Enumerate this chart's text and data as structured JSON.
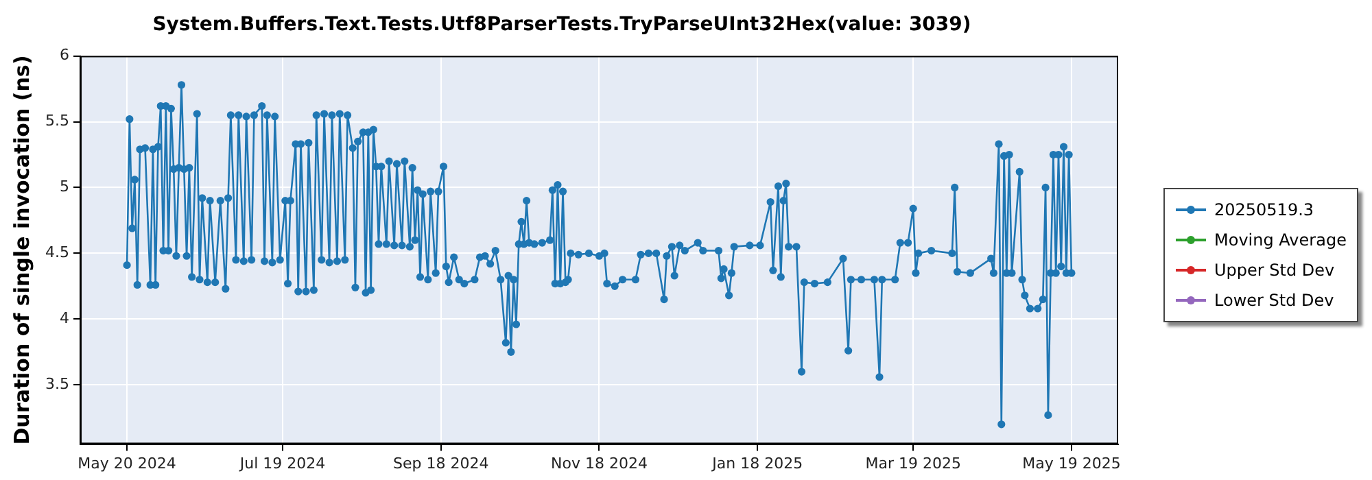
{
  "chart_data": {
    "type": "line",
    "title": "System.Buffers.Text.Tests.Utf8ParserTests.TryParseUInt32Hex(value: 3039)",
    "ylabel": "Duration of single invocation (ns)",
    "xlim": [
      "2024-05-02",
      "2025-06-06"
    ],
    "xticks": [
      {
        "value": "2024-05-20",
        "label": "May 20 2024"
      },
      {
        "value": "2024-07-19",
        "label": "Jul 19 2024"
      },
      {
        "value": "2024-09-18",
        "label": "Sep 18 2024"
      },
      {
        "value": "2024-11-18",
        "label": "Nov 18 2024"
      },
      {
        "value": "2025-01-18",
        "label": "Jan 18 2025"
      },
      {
        "value": "2025-03-19",
        "label": "Mar 19 2025"
      },
      {
        "value": "2025-05-19",
        "label": "May 19 2025"
      }
    ],
    "ylim": [
      3.05,
      6
    ],
    "yticks": [
      3.5,
      4,
      4.5,
      5,
      5.5,
      6
    ],
    "grid": true,
    "legend": "right",
    "marker": "circle",
    "line_style": "solid",
    "series": [
      {
        "name": "20250519.3",
        "color": "#1f77b4",
        "x": [
          "2024-05-20",
          "2024-05-21",
          "2024-05-22",
          "2024-05-23",
          "2024-05-24",
          "2024-05-25",
          "2024-05-27",
          "2024-05-29",
          "2024-05-30",
          "2024-05-31",
          "2024-06-01",
          "2024-06-02",
          "2024-06-03",
          "2024-06-04",
          "2024-06-05",
          "2024-06-06",
          "2024-06-07",
          "2024-06-08",
          "2024-06-09",
          "2024-06-10",
          "2024-06-11",
          "2024-06-12",
          "2024-06-13",
          "2024-06-14",
          "2024-06-16",
          "2024-06-17",
          "2024-06-18",
          "2024-06-20",
          "2024-06-21",
          "2024-06-23",
          "2024-06-25",
          "2024-06-27",
          "2024-06-28",
          "2024-06-29",
          "2024-07-01",
          "2024-07-02",
          "2024-07-04",
          "2024-07-05",
          "2024-07-07",
          "2024-07-08",
          "2024-07-11",
          "2024-07-12",
          "2024-07-13",
          "2024-07-15",
          "2024-07-16",
          "2024-07-18",
          "2024-07-20",
          "2024-07-21",
          "2024-07-22",
          "2024-07-24",
          "2024-07-25",
          "2024-07-26",
          "2024-07-28",
          "2024-07-29",
          "2024-07-31",
          "2024-08-01",
          "2024-08-03",
          "2024-08-04",
          "2024-08-06",
          "2024-08-07",
          "2024-08-09",
          "2024-08-10",
          "2024-08-12",
          "2024-08-13",
          "2024-08-15",
          "2024-08-16",
          "2024-08-17",
          "2024-08-19",
          "2024-08-20",
          "2024-08-21",
          "2024-08-22",
          "2024-08-23",
          "2024-08-24",
          "2024-08-25",
          "2024-08-26",
          "2024-08-28",
          "2024-08-29",
          "2024-08-31",
          "2024-09-01",
          "2024-09-03",
          "2024-09-04",
          "2024-09-06",
          "2024-09-07",
          "2024-09-08",
          "2024-09-09",
          "2024-09-10",
          "2024-09-11",
          "2024-09-13",
          "2024-09-14",
          "2024-09-16",
          "2024-09-17",
          "2024-09-19",
          "2024-09-20",
          "2024-09-21",
          "2024-09-23",
          "2024-09-25",
          "2024-09-27",
          "2024-10-01",
          "2024-10-03",
          "2024-10-05",
          "2024-10-07",
          "2024-10-09",
          "2024-10-11",
          "2024-10-13",
          "2024-10-14",
          "2024-10-15",
          "2024-10-16",
          "2024-10-17",
          "2024-10-18",
          "2024-10-19",
          "2024-10-20",
          "2024-10-21",
          "2024-10-22",
          "2024-10-24",
          "2024-10-27",
          "2024-10-30",
          "2024-10-31",
          "2024-11-01",
          "2024-11-02",
          "2024-11-03",
          "2024-11-04",
          "2024-11-05",
          "2024-11-06",
          "2024-11-07",
          "2024-11-10",
          "2024-11-14",
          "2024-11-18",
          "2024-11-20",
          "2024-11-21",
          "2024-11-24",
          "2024-11-27",
          "2024-12-02",
          "2024-12-04",
          "2024-12-07",
          "2024-12-10",
          "2024-12-13",
          "2024-12-14",
          "2024-12-16",
          "2024-12-17",
          "2024-12-19",
          "2024-12-21",
          "2024-12-26",
          "2024-12-28",
          "2025-01-03",
          "2025-01-04",
          "2025-01-05",
          "2025-01-07",
          "2025-01-08",
          "2025-01-09",
          "2025-01-15",
          "2025-01-19",
          "2025-01-23",
          "2025-01-24",
          "2025-01-26",
          "2025-01-27",
          "2025-01-28",
          "2025-01-29",
          "2025-01-30",
          "2025-02-02",
          "2025-02-04",
          "2025-02-05",
          "2025-02-09",
          "2025-02-14",
          "2025-02-20",
          "2025-02-22",
          "2025-02-23",
          "2025-02-27",
          "2025-03-04",
          "2025-03-06",
          "2025-03-07",
          "2025-03-12",
          "2025-03-14",
          "2025-03-17",
          "2025-03-19",
          "2025-03-20",
          "2025-03-21",
          "2025-03-26",
          "2025-04-03",
          "2025-04-04",
          "2025-04-05",
          "2025-04-10",
          "2025-04-18",
          "2025-04-19",
          "2025-04-21",
          "2025-04-22",
          "2025-04-23",
          "2025-04-24",
          "2025-04-25",
          "2025-04-26",
          "2025-04-29",
          "2025-04-30",
          "2025-05-01",
          "2025-05-03",
          "2025-05-06",
          "2025-05-08",
          "2025-05-09",
          "2025-05-10",
          "2025-05-11",
          "2025-05-12",
          "2025-05-13",
          "2025-05-14",
          "2025-05-15",
          "2025-05-16",
          "2025-05-17",
          "2025-05-18",
          "2025-05-19"
        ],
        "values": [
          4.41,
          5.52,
          4.69,
          5.06,
          4.26,
          5.29,
          5.3,
          4.26,
          5.29,
          4.26,
          5.31,
          5.62,
          4.52,
          5.62,
          4.52,
          5.6,
          5.14,
          4.48,
          5.15,
          5.78,
          5.14,
          4.48,
          5.15,
          4.32,
          5.56,
          4.3,
          4.92,
          4.28,
          4.9,
          4.28,
          4.9,
          4.23,
          4.92,
          5.55,
          4.45,
          5.55,
          4.44,
          5.54,
          4.45,
          5.55,
          5.62,
          4.44,
          5.55,
          4.43,
          5.54,
          4.45,
          4.9,
          4.27,
          4.9,
          5.33,
          4.21,
          5.33,
          4.21,
          5.34,
          4.22,
          5.55,
          4.45,
          5.56,
          4.43,
          5.55,
          4.44,
          5.56,
          4.45,
          5.55,
          5.3,
          4.24,
          5.35,
          5.42,
          4.2,
          5.42,
          4.22,
          5.44,
          5.16,
          4.57,
          5.16,
          4.57,
          5.2,
          4.56,
          5.18,
          4.56,
          5.2,
          4.55,
          5.15,
          4.6,
          4.98,
          4.32,
          4.95,
          4.3,
          4.97,
          4.35,
          4.97,
          5.16,
          4.4,
          4.28,
          4.47,
          4.3,
          4.27,
          4.3,
          4.47,
          4.48,
          4.42,
          4.52,
          4.3,
          3.82,
          4.33,
          3.75,
          4.3,
          3.96,
          4.57,
          4.74,
          4.57,
          4.9,
          4.58,
          4.57,
          4.58,
          4.6,
          4.98,
          4.27,
          5.02,
          4.27,
          4.97,
          4.28,
          4.3,
          4.5,
          4.49,
          4.5,
          4.48,
          4.5,
          4.27,
          4.25,
          4.3,
          4.3,
          4.49,
          4.5,
          4.5,
          4.15,
          4.48,
          4.55,
          4.33,
          4.56,
          4.52,
          4.58,
          4.52,
          4.52,
          4.31,
          4.38,
          4.18,
          4.35,
          4.55,
          4.56,
          4.56,
          4.89,
          4.37,
          5.01,
          4.32,
          4.9,
          5.03,
          4.55,
          4.55,
          3.6,
          4.28,
          4.27,
          4.28,
          4.46,
          3.76,
          4.3,
          4.3,
          4.3,
          3.56,
          4.3,
          4.3,
          4.58,
          4.58,
          4.84,
          4.35,
          4.5,
          4.52,
          4.5,
          5,
          4.36,
          4.35,
          4.46,
          4.35,
          5.33,
          3.2,
          5.24,
          4.35,
          5.25,
          4.35,
          5.12,
          4.3,
          4.18,
          4.08,
          4.08,
          4.15,
          5,
          3.27,
          4.35,
          5.25,
          4.35,
          5.25,
          4.4,
          5.31,
          4.35,
          5.25,
          4.35
        ]
      },
      {
        "name": "Moving Average",
        "color": "#2ca02c"
      },
      {
        "name": "Upper Std Dev",
        "color": "#d62728"
      },
      {
        "name": "Lower Std Dev",
        "color": "#9467bd"
      }
    ]
  }
}
